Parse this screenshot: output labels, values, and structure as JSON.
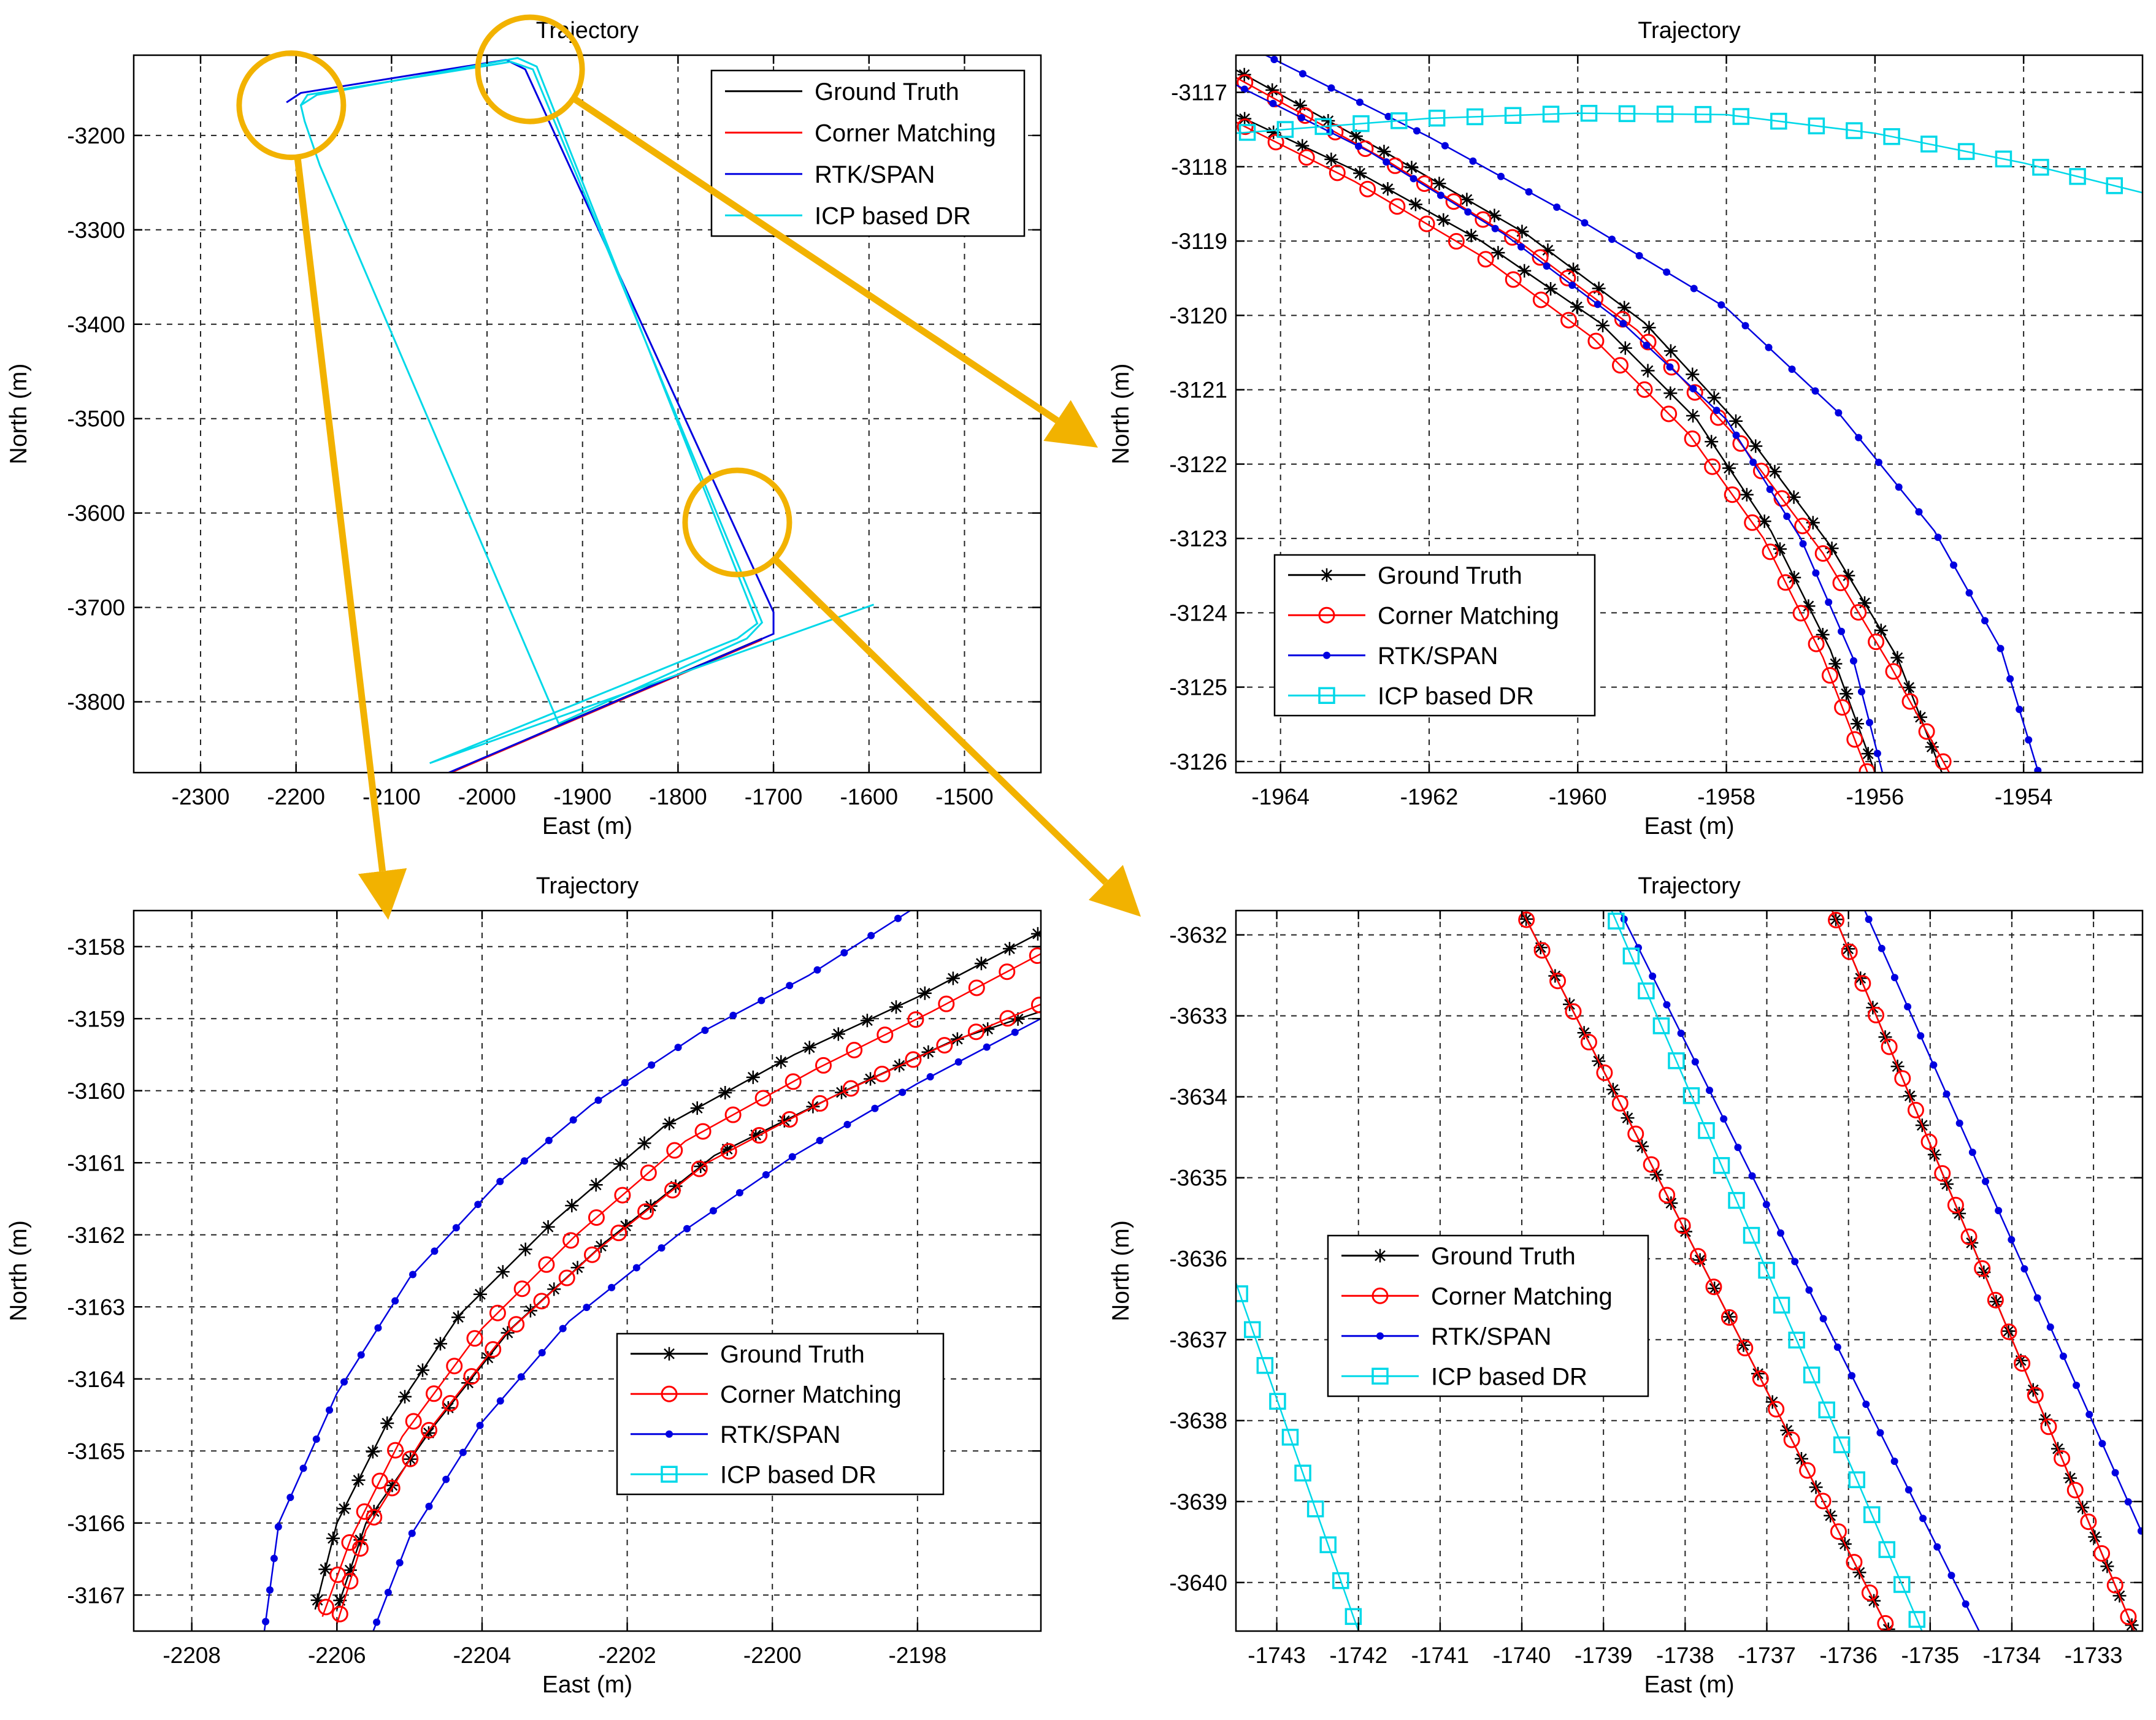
{
  "series_styles": {
    "Ground Truth": {
      "color": "#000000",
      "marker": "star"
    },
    "Corner Matching": {
      "color": "#ff0000",
      "marker": "circle"
    },
    "RTK/SPAN": {
      "color": "#0000e0",
      "marker": "dot"
    },
    "ICP based DR": {
      "color": "#00d8e8",
      "marker": "square"
    }
  },
  "annotation_color": "#f2b200",
  "chart_data": [
    {
      "id": "overview",
      "type": "line",
      "title": "Trajectory",
      "xlabel": "East (m)",
      "ylabel": "North (m)",
      "xlim": [
        -2370,
        -1420
      ],
      "ylim": [
        -3875,
        -3115
      ],
      "xticks": [
        -2300,
        -2200,
        -2100,
        -2000,
        -1900,
        -1800,
        -1700,
        -1600,
        -1500
      ],
      "yticks": [
        -3200,
        -3300,
        -3400,
        -3500,
        -3600,
        -3700,
        -3800
      ],
      "grid": true,
      "legend": [
        "Ground Truth",
        "Corner Matching",
        "RTK/SPAN",
        "ICP based DR"
      ],
      "legend_position": "top-right",
      "series": [
        {
          "name": "Ground Truth",
          "x": [
            -2038,
            -1925,
            -1712
          ],
          "y": [
            -3875,
            -3825,
            -3733
          ]
        },
        {
          "name": "Corner Matching",
          "x": [
            -2038,
            -1925,
            -1712
          ],
          "y": [
            -3875,
            -3826,
            -3734
          ]
        },
        {
          "name": "RTK/SPAN",
          "x": [
            -2210,
            -2195,
            -1980,
            -1960,
            -1700,
            -1700,
            -2040
          ],
          "y": [
            -3165,
            -3155,
            -3120,
            -3130,
            -3705,
            -3728,
            -3875
          ]
        },
        {
          "name": "ICP based DR",
          "x": [
            -2195,
            -2188,
            -1975,
            -1952,
            -1712,
            -1728,
            -1925,
            -2175,
            -2191,
            -2195,
            -2178,
            -1968,
            -1948,
            -1717,
            -1738,
            -2060,
            -1595
          ],
          "y": [
            -3168,
            -3157,
            -3122,
            -3130,
            -3716,
            -3733,
            -3823,
            -3232,
            -3185,
            -3168,
            -3157,
            -3118,
            -3127,
            -3717,
            -3733,
            -3865,
            -3697
          ]
        }
      ],
      "zoom_circles": [
        {
          "target": "bottom-left",
          "x": -2205,
          "y": -3168
        },
        {
          "target": "top-right",
          "x": -1955,
          "y": -3130
        },
        {
          "target": "bottom-right",
          "x": -1738,
          "y": -3610
        }
      ]
    },
    {
      "id": "zoom-top",
      "type": "line",
      "title": "Trajectory",
      "xlabel": "East (m)",
      "ylabel": "North (m)",
      "xlim": [
        -1964.6,
        -1952.4
      ],
      "ylim": [
        -3126.15,
        -3116.5
      ],
      "xticks": [
        -1964,
        -1962,
        -1960,
        -1958,
        -1956,
        -1954
      ],
      "yticks": [
        -3117,
        -3118,
        -3119,
        -3120,
        -3121,
        -3122,
        -3123,
        -3124,
        -3125,
        -3126
      ],
      "grid": true,
      "legend": [
        "Ground Truth",
        "Corner Matching",
        "RTK/SPAN",
        "ICP based DR"
      ],
      "legend_position": "bottom-left",
      "series": [
        {
          "name": "Ground Truth",
          "x": [
            -1964.6,
            -1963.0,
            -1961.3,
            -1959.7,
            -1958.4,
            -1957.4,
            -1956.6,
            -1956.0
          ],
          "y": [
            -3117.3,
            -3118.05,
            -3119.0,
            -3120.1,
            -3121.4,
            -3122.9,
            -3124.5,
            -3126.15
          ]
        },
        {
          "name": "Ground Truth",
          "x": [
            -1964.6,
            -1962.6,
            -1960.7,
            -1959.1,
            -1957.8,
            -1956.6,
            -1955.7,
            -1955.1
          ],
          "y": [
            -3116.7,
            -3117.8,
            -3118.9,
            -3120.1,
            -3121.5,
            -3123.1,
            -3124.6,
            -3126.15
          ]
        },
        {
          "name": "Corner Matching",
          "x": [
            -1964.6,
            -1963.0,
            -1961.3,
            -1959.8,
            -1958.5,
            -1957.5,
            -1956.7,
            -1956.1
          ],
          "y": [
            -3117.4,
            -3118.2,
            -3119.2,
            -3120.3,
            -3121.6,
            -3123.0,
            -3124.6,
            -3126.15
          ]
        },
        {
          "name": "Corner Matching",
          "x": [
            -1964.6,
            -1962.6,
            -1960.8,
            -1959.2,
            -1957.9,
            -1956.7,
            -1955.8,
            -1955.0
          ],
          "y": [
            -3116.8,
            -3117.9,
            -3119.0,
            -3120.2,
            -3121.6,
            -3123.2,
            -3124.7,
            -3126.15
          ]
        },
        {
          "name": "RTK/SPAN",
          "x": [
            -1964.6,
            -1962.8,
            -1961.0,
            -1959.4,
            -1958.0,
            -1957.0,
            -1956.3,
            -1955.9
          ],
          "y": [
            -3116.9,
            -3117.8,
            -3118.9,
            -3120.1,
            -3121.4,
            -3123.0,
            -3124.6,
            -3126.15
          ]
        },
        {
          "name": "RTK/SPAN",
          "x": [
            -1964.2,
            -1962.0,
            -1960.0,
            -1958.0,
            -1956.5,
            -1955.2,
            -1954.3,
            -1953.8
          ],
          "y": [
            -3116.5,
            -3117.6,
            -3118.7,
            -3119.9,
            -3121.3,
            -3122.9,
            -3124.5,
            -3126.15
          ]
        },
        {
          "name": "ICP based DR",
          "x": [
            -1964.6,
            -1962.0,
            -1960.0,
            -1958.0,
            -1956.0,
            -1954.0,
            -1952.4
          ],
          "y": [
            -3117.55,
            -3117.35,
            -3117.28,
            -3117.3,
            -3117.55,
            -3117.95,
            -3118.35
          ]
        }
      ]
    },
    {
      "id": "zoom-bottom-left",
      "type": "line",
      "title": "Trajectory",
      "xlabel": "East (m)",
      "ylabel": "North (m)",
      "xlim": [
        -2208.8,
        -2196.3
      ],
      "ylim": [
        -3167.5,
        -3157.5
      ],
      "xticks": [
        -2208,
        -2206,
        -2204,
        -2202,
        -2200,
        -2198
      ],
      "yticks": [
        -3158,
        -3159,
        -3160,
        -3161,
        -3162,
        -3163,
        -3164,
        -3165,
        -3166,
        -3167
      ],
      "grid": true,
      "legend": [
        "Ground Truth",
        "Corner Matching",
        "RTK/SPAN",
        "ICP based DR"
      ],
      "legend_position": "bottom-right",
      "series": [
        {
          "name": "Ground Truth",
          "x": [
            -2206.3,
            -2206.0,
            -2205.3,
            -2204.3,
            -2203.0,
            -2201.5,
            -2199.7,
            -2198.0,
            -2196.3
          ],
          "y": [
            -3167.2,
            -3166.0,
            -3164.6,
            -3163.1,
            -3161.8,
            -3160.5,
            -3159.5,
            -3158.7,
            -3157.8
          ]
        },
        {
          "name": "Ground Truth",
          "x": [
            -2206.0,
            -2205.6,
            -2204.7,
            -2203.6,
            -2202.3,
            -2200.8,
            -2199.0,
            -2197.5,
            -2196.3
          ],
          "y": [
            -3167.2,
            -3166.0,
            -3164.7,
            -3163.3,
            -3162.1,
            -3160.9,
            -3160.0,
            -3159.3,
            -3158.9
          ]
        },
        {
          "name": "Corner Matching",
          "x": [
            -2206.2,
            -2205.8,
            -2205.1,
            -2204.0,
            -2202.7,
            -2201.2,
            -2199.4,
            -2197.8,
            -2196.3
          ],
          "y": [
            -3167.3,
            -3166.2,
            -3164.8,
            -3163.3,
            -3162.0,
            -3160.7,
            -3159.7,
            -3158.9,
            -3158.1
          ]
        },
        {
          "name": "Corner Matching",
          "x": [
            -2206.0,
            -2205.6,
            -2204.8,
            -2203.7,
            -2202.4,
            -2200.9,
            -2199.2,
            -2197.7,
            -2196.3
          ],
          "y": [
            -3167.4,
            -3166.1,
            -3164.8,
            -3163.4,
            -3162.2,
            -3161.0,
            -3160.1,
            -3159.4,
            -3158.8
          ]
        },
        {
          "name": "RTK/SPAN",
          "x": [
            -2207.0,
            -2206.8,
            -2206.0,
            -2205.0,
            -2203.8,
            -2202.5,
            -2201.0,
            -2199.5,
            -2198.1
          ],
          "y": [
            -3167.5,
            -3166.0,
            -3164.2,
            -3162.6,
            -3161.3,
            -3160.2,
            -3159.2,
            -3158.4,
            -3157.5
          ]
        },
        {
          "name": "RTK/SPAN",
          "x": [
            -2205.5,
            -2205.0,
            -2204.0,
            -2202.8,
            -2201.3,
            -2199.7,
            -2198.0,
            -2196.3
          ],
          "y": [
            -3167.5,
            -3166.2,
            -3164.6,
            -3163.2,
            -3162.0,
            -3160.9,
            -3159.9,
            -3159.0
          ]
        }
      ]
    },
    {
      "id": "zoom-bottom-right",
      "type": "line",
      "title": "Trajectory",
      "xlabel": "East (m)",
      "ylabel": "North (m)",
      "xlim": [
        -1743.5,
        -1732.4
      ],
      "ylim": [
        -3640.6,
        -3631.7
      ],
      "xticks": [
        -1743,
        -1742,
        -1741,
        -1740,
        -1739,
        -1738,
        -1737,
        -1736,
        -1735,
        -1734,
        -1733
      ],
      "yticks": [
        -3632,
        -3633,
        -3634,
        -3635,
        -3636,
        -3637,
        -3638,
        -3639,
        -3640
      ],
      "grid": true,
      "legend": [
        "Ground Truth",
        "Corner Matching",
        "RTK/SPAN",
        "ICP based DR"
      ],
      "legend_position": "center-left",
      "series": [
        {
          "name": "Ground Truth",
          "x": [
            -1740.0,
            -1735.5
          ],
          "y": [
            -3631.7,
            -3640.6
          ]
        },
        {
          "name": "Ground Truth",
          "x": [
            -1736.2,
            -1732.5
          ],
          "y": [
            -3631.7,
            -3640.6
          ]
        },
        {
          "name": "Corner Matching",
          "x": [
            -1740.0,
            -1735.5
          ],
          "y": [
            -3631.7,
            -3640.6
          ]
        },
        {
          "name": "Corner Matching",
          "x": [
            -1736.2,
            -1732.5
          ],
          "y": [
            -3631.7,
            -3640.6
          ]
        },
        {
          "name": "RTK/SPAN",
          "x": [
            -1738.8,
            -1734.4
          ],
          "y": [
            -3631.7,
            -3640.6
          ]
        },
        {
          "name": "RTK/SPAN",
          "x": [
            -1735.8,
            -1732.4
          ],
          "y": [
            -3631.7,
            -3639.4
          ]
        },
        {
          "name": "ICP based DR",
          "x": [
            -1738.9,
            -1735.1
          ],
          "y": [
            -3631.7,
            -3640.6
          ]
        },
        {
          "name": "ICP based DR",
          "x": [
            -1743.5,
            -1742.0
          ],
          "y": [
            -3636.3,
            -3640.6
          ]
        }
      ]
    }
  ]
}
